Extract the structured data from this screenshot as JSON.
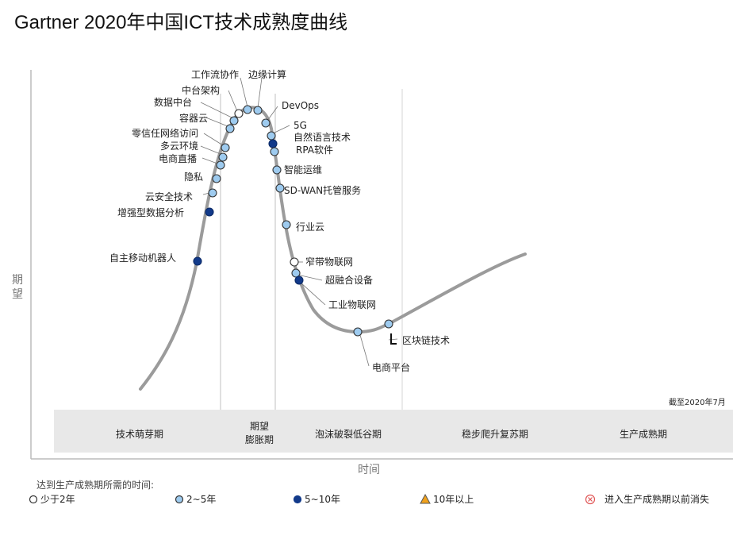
{
  "title": "Gartner 2020年中国ICT技术成熟度曲线",
  "chart_data": {
    "type": "scatter",
    "title": "Gartner 2020年中国ICT技术成熟度曲线",
    "xlabel": "时间",
    "ylabel": "期望",
    "date_note": "截至2020年7月",
    "phases": [
      "技术萌芽期",
      "期望膨胀期",
      "泡沫破裂低谷期",
      "稳步爬升复苏期",
      "生产成熟期"
    ],
    "phase_peak_lines": [
      "期望",
      "膨胀期"
    ],
    "legend_title": "达到生产成熟期所需的时间:",
    "legend": [
      {
        "key": "lt2",
        "label": "少于2年",
        "color": "#ffffff"
      },
      {
        "key": "2to5",
        "label": "2~5年",
        "color": "#9ecbef"
      },
      {
        "key": "5to10",
        "label": "5~10年",
        "color": "#123a8a"
      },
      {
        "key": "gt10",
        "label": "10年以上",
        "color": "#f0a11c"
      },
      {
        "key": "obsolete",
        "label": "进入生产成熟期以前消失",
        "color": "#e05555"
      }
    ],
    "technologies": [
      {
        "name": "自主移动机器人",
        "category": "5to10",
        "phase": "技术萌芽期"
      },
      {
        "name": "增强型数据分析",
        "category": "5to10",
        "phase": "技术萌芽期"
      },
      {
        "name": "云安全技术",
        "category": "2to5",
        "phase": "技术萌芽期"
      },
      {
        "name": "隐私",
        "category": "2to5",
        "phase": "技术萌芽期"
      },
      {
        "name": "电商直播",
        "category": "2to5",
        "phase": "技术萌芽期"
      },
      {
        "name": "多云环境",
        "category": "2to5",
        "phase": "技术萌芽期"
      },
      {
        "name": "零信任网络访问",
        "category": "2to5",
        "phase": "技术萌芽期"
      },
      {
        "name": "容器云",
        "category": "2to5",
        "phase": "技术萌芽期"
      },
      {
        "name": "数据中台",
        "category": "2to5",
        "phase": "技术萌芽期"
      },
      {
        "name": "中台架构",
        "category": "lt2",
        "phase": "技术萌芽期"
      },
      {
        "name": "工作流协作",
        "category": "2to5",
        "phase": "期望膨胀期"
      },
      {
        "name": "边缘计算",
        "category": "2to5",
        "phase": "期望膨胀期"
      },
      {
        "name": "DevOps",
        "category": "2to5",
        "phase": "期望膨胀期"
      },
      {
        "name": "5G",
        "category": "2to5",
        "phase": "期望膨胀期"
      },
      {
        "name": "自然语言技术",
        "category": "5to10",
        "phase": "期望膨胀期"
      },
      {
        "name": "RPA软件",
        "category": "2to5",
        "phase": "期望膨胀期"
      },
      {
        "name": "智能运维",
        "category": "2to5",
        "phase": "期望膨胀期"
      },
      {
        "name": "SD-WAN托管服务",
        "category": "2to5",
        "phase": "泡沫破裂低谷期"
      },
      {
        "name": "行业云",
        "category": "2to5",
        "phase": "泡沫破裂低谷期"
      },
      {
        "name": "窄带物联网",
        "category": "lt2",
        "phase": "泡沫破裂低谷期"
      },
      {
        "name": "超融合设备",
        "category": "2to5",
        "phase": "泡沫破裂低谷期"
      },
      {
        "name": "工业物联网",
        "category": "5to10",
        "phase": "泡沫破裂低谷期"
      },
      {
        "name": "电商平台",
        "category": "2to5",
        "phase": "泡沫破裂低谷期"
      },
      {
        "name": "区块链技术",
        "category": "2to5",
        "phase": "泡沫破裂低谷期"
      }
    ]
  }
}
